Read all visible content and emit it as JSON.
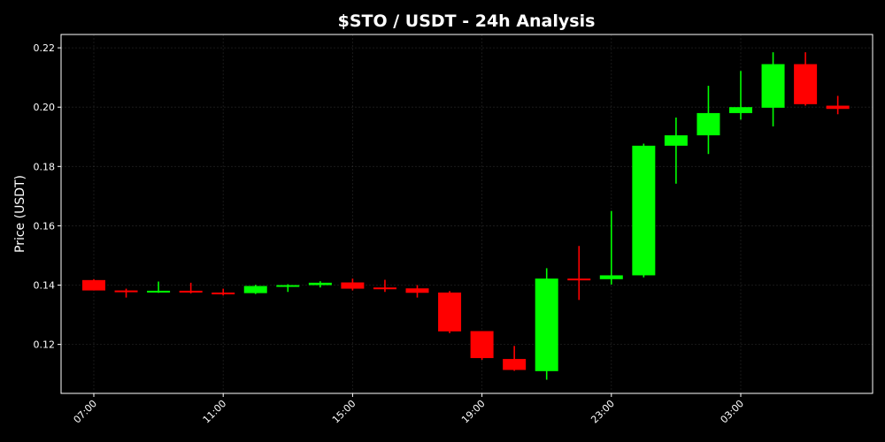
{
  "chart_data": {
    "type": "candlestick",
    "title": "$STO / USDT - 24h Analysis",
    "xlabel": "",
    "ylabel": "Price (USDT)",
    "ylim": [
      0.1035,
      0.2245
    ],
    "yticks": [
      0.12,
      0.14,
      0.16,
      0.18,
      0.2,
      0.22
    ],
    "ytick_labels": [
      "0.12",
      "0.14",
      "0.16",
      "0.18",
      "0.20",
      "0.22"
    ],
    "xticks": [
      "07:00",
      "11:00",
      "15:00",
      "19:00",
      "23:00",
      "03:00"
    ],
    "xtick_indices": [
      0,
      4,
      8,
      12,
      16,
      20
    ],
    "grid": true,
    "colors": {
      "up": "#00ff00",
      "down": "#ff0000",
      "background": "#000000",
      "text": "#ffffff"
    },
    "candles": [
      {
        "time": "07:00",
        "open": 0.1417,
        "high": 0.142,
        "low": 0.1382,
        "close": 0.1382
      },
      {
        "time": "08:00",
        "open": 0.1382,
        "high": 0.1388,
        "low": 0.1358,
        "close": 0.138
      },
      {
        "time": "09:00",
        "open": 0.1378,
        "high": 0.1412,
        "low": 0.1374,
        "close": 0.1381
      },
      {
        "time": "10:00",
        "open": 0.1381,
        "high": 0.1408,
        "low": 0.1372,
        "close": 0.1375
      },
      {
        "time": "11:00",
        "open": 0.1375,
        "high": 0.1388,
        "low": 0.1365,
        "close": 0.1372
      },
      {
        "time": "12:00",
        "open": 0.1373,
        "high": 0.1401,
        "low": 0.137,
        "close": 0.1397
      },
      {
        "time": "13:00",
        "open": 0.1397,
        "high": 0.1403,
        "low": 0.1377,
        "close": 0.14
      },
      {
        "time": "14:00",
        "open": 0.14,
        "high": 0.1413,
        "low": 0.1392,
        "close": 0.1408
      },
      {
        "time": "15:00",
        "open": 0.1409,
        "high": 0.1422,
        "low": 0.1382,
        "close": 0.1388
      },
      {
        "time": "16:00",
        "open": 0.1392,
        "high": 0.1418,
        "low": 0.1377,
        "close": 0.1389
      },
      {
        "time": "17:00",
        "open": 0.1389,
        "high": 0.14,
        "low": 0.1358,
        "close": 0.1374
      },
      {
        "time": "18:00",
        "open": 0.1375,
        "high": 0.138,
        "low": 0.1238,
        "close": 0.1244
      },
      {
        "time": "19:00",
        "open": 0.1245,
        "high": 0.1245,
        "low": 0.1148,
        "close": 0.1154
      },
      {
        "time": "20:00",
        "open": 0.1151,
        "high": 0.1195,
        "low": 0.1111,
        "close": 0.1114
      },
      {
        "time": "21:00",
        "open": 0.111,
        "high": 0.1457,
        "low": 0.1081,
        "close": 0.1422
      },
      {
        "time": "22:00",
        "open": 0.1422,
        "high": 0.1532,
        "low": 0.135,
        "close": 0.142
      },
      {
        "time": "23:00",
        "open": 0.142,
        "high": 0.165,
        "low": 0.1402,
        "close": 0.1433
      },
      {
        "time": "00:00",
        "open": 0.1433,
        "high": 0.1877,
        "low": 0.1426,
        "close": 0.187
      },
      {
        "time": "01:00",
        "open": 0.187,
        "high": 0.1965,
        "low": 0.1742,
        "close": 0.1905
      },
      {
        "time": "02:00",
        "open": 0.1905,
        "high": 0.2072,
        "low": 0.1842,
        "close": 0.198
      },
      {
        "time": "03:00",
        "open": 0.198,
        "high": 0.2122,
        "low": 0.1958,
        "close": 0.2
      },
      {
        "time": "04:00",
        "open": 0.1998,
        "high": 0.2185,
        "low": 0.1935,
        "close": 0.2145
      },
      {
        "time": "05:00",
        "open": 0.2145,
        "high": 0.2185,
        "low": 0.2005,
        "close": 0.201
      },
      {
        "time": "06:00",
        "open": 0.2005,
        "high": 0.2038,
        "low": 0.1976,
        "close": 0.1994
      }
    ]
  }
}
